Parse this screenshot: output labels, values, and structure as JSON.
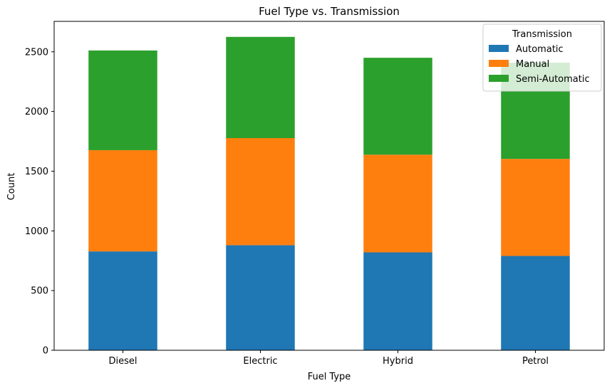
{
  "chart_data": {
    "type": "bar",
    "stacked": true,
    "title": "Fuel Type vs. Transmission",
    "xlabel": "Fuel Type",
    "ylabel": "Count",
    "categories": [
      "Diesel",
      "Electric",
      "Hybrid",
      "Petrol"
    ],
    "series": [
      {
        "name": "Automatic",
        "color": "#1f77b4",
        "values": [
          828,
          880,
          820,
          790
        ]
      },
      {
        "name": "Manual",
        "color": "#ff7f0e",
        "values": [
          848,
          897,
          818,
          813
        ]
      },
      {
        "name": "Semi-Automatic",
        "color": "#2ca02c",
        "values": [
          835,
          848,
          812,
          806
        ]
      }
    ],
    "ylim": [
      0,
      2755
    ],
    "yticks": [
      0,
      500,
      1000,
      1500,
      2000,
      2500
    ],
    "legend": {
      "title": "Transmission",
      "position": "top-right"
    },
    "grid": false
  }
}
